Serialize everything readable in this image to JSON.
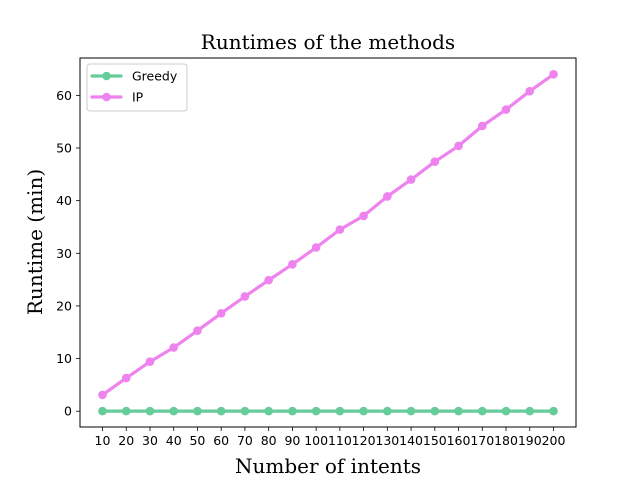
{
  "chart_data": {
    "type": "line",
    "title": "Runtimes of the methods",
    "xlabel": "Number of intents",
    "ylabel": "Runtime (min)",
    "x": [
      10,
      20,
      30,
      40,
      50,
      60,
      70,
      80,
      90,
      100,
      110,
      120,
      130,
      140,
      150,
      160,
      170,
      180,
      190,
      200
    ],
    "x_tick_labels": [
      "10",
      "20",
      "30",
      "40",
      "50",
      "60",
      "70",
      "80",
      "90",
      "100",
      "110",
      "120",
      "130",
      "140",
      "150",
      "160",
      "170",
      "180",
      "190",
      "200"
    ],
    "y_ticks": [
      0,
      10,
      20,
      30,
      40,
      50,
      60
    ],
    "ylim": [
      -3.0,
      67.1
    ],
    "grid": false,
    "legend_position": "top-left",
    "series": [
      {
        "name": "Greedy",
        "color": "#66cc99",
        "marker": "circle",
        "values": [
          0.02,
          0.02,
          0.02,
          0.02,
          0.02,
          0.02,
          0.02,
          0.02,
          0.02,
          0.02,
          0.02,
          0.02,
          0.02,
          0.02,
          0.02,
          0.02,
          0.02,
          0.02,
          0.02,
          0.02
        ]
      },
      {
        "name": "IP",
        "color": "#ee82ee",
        "marker": "circle",
        "values": [
          3.1,
          6.3,
          9.4,
          12.1,
          15.3,
          18.6,
          21.8,
          24.9,
          27.9,
          31.1,
          34.5,
          37.1,
          40.8,
          44.0,
          47.4,
          50.4,
          54.2,
          57.3,
          60.8,
          64.0
        ]
      }
    ]
  }
}
